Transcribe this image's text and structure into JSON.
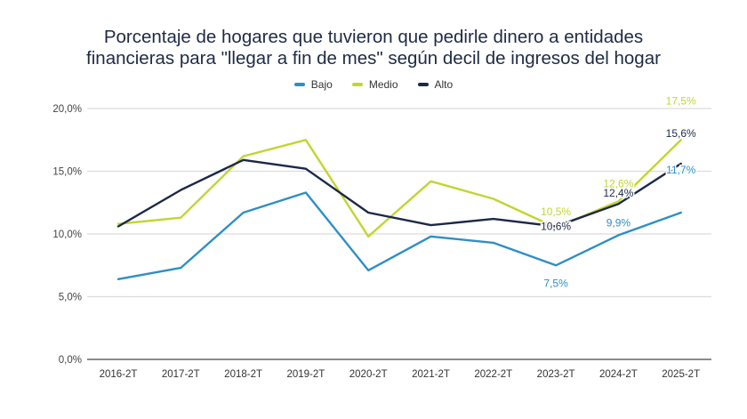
{
  "chart_data": {
    "type": "line",
    "title_lines": [
      "Porcentaje de hogares que tuvieron que pedirle dinero a entidades",
      "financieras para \"llegar a fin de mes\" según decil de ingresos del hogar"
    ],
    "xlabel": "",
    "ylabel": "",
    "categories": [
      "2016-2T",
      "2017-2T",
      "2018-2T",
      "2019-2T",
      "2020-2T",
      "2021-2T",
      "2022-2T",
      "2023-2T",
      "2024-2T",
      "2025-2T"
    ],
    "ylim": [
      0,
      20
    ],
    "yticks": [
      0,
      5,
      10,
      15,
      20
    ],
    "ytick_labels": [
      "0,0%",
      "5,0%",
      "10,0%",
      "15,0%",
      "20,0%"
    ],
    "grid": true,
    "legend_position": "top-center",
    "series": [
      {
        "name": "Bajo",
        "color": "#2e8fc4",
        "values": [
          6.4,
          7.3,
          11.7,
          13.3,
          7.1,
          9.8,
          9.3,
          7.5,
          9.9,
          11.7
        ],
        "data_labels": [
          null,
          null,
          null,
          null,
          null,
          null,
          null,
          "7,5%",
          "9,9%",
          "11,7%"
        ]
      },
      {
        "name": "Medio",
        "color": "#c2d530",
        "values": [
          10.8,
          11.3,
          16.2,
          17.5,
          9.8,
          14.2,
          12.8,
          10.5,
          12.6,
          17.5
        ],
        "data_labels": [
          null,
          null,
          null,
          null,
          null,
          null,
          null,
          "10,5%",
          "12,6%",
          "17,5%"
        ]
      },
      {
        "name": "Alto",
        "color": "#1b2847",
        "values": [
          10.6,
          13.5,
          15.9,
          15.2,
          11.7,
          10.7,
          11.2,
          10.6,
          12.4,
          15.6
        ],
        "data_labels": [
          null,
          null,
          null,
          null,
          null,
          null,
          null,
          "10,6%",
          "12,4%",
          "15,6%"
        ]
      }
    ]
  }
}
